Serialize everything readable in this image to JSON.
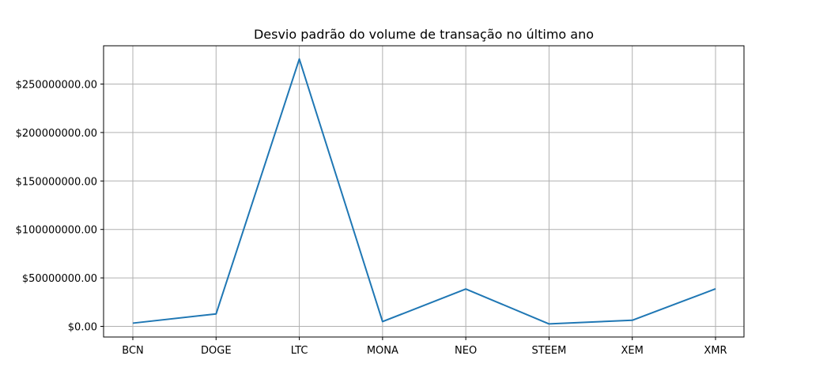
{
  "chart_data": {
    "type": "line",
    "title": "Desvio padrão do volume de transação no último ano",
    "xlabel": "",
    "ylabel": "",
    "categories": [
      "BCN",
      "DOGE",
      "LTC",
      "MONA",
      "NEO",
      "STEEM",
      "XEM",
      "XMR"
    ],
    "series": [
      {
        "values": [
          3300000,
          12800000,
          275800000,
          4900000,
          38500000,
          2500000,
          6300000,
          38700000
        ],
        "color": "#1f77b4"
      }
    ],
    "ylim": [
      -11000000,
      289500000
    ],
    "yticks": [
      0,
      50000000,
      100000000,
      150000000,
      200000000,
      250000000
    ],
    "ytick_labels": [
      "$0.00",
      "$50000000.00",
      "$100000000.00",
      "$150000000.00",
      "$200000000.00",
      "$250000000.00"
    ],
    "grid": true,
    "legend": "none",
    "colors": {
      "grid": "#b0b0b0",
      "axis": "#000000",
      "line": "#1f77b4"
    }
  }
}
